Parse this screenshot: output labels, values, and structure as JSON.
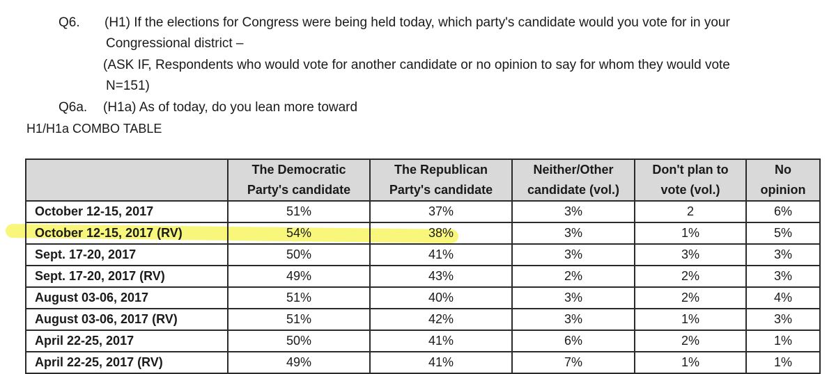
{
  "question": {
    "q6_number": "Q6.",
    "q6_line1": "(H1) If the elections for Congress were being held today, which party's candidate would you vote for in your",
    "q6_line2": "Congressional district –",
    "ask_line1": "(ASK IF, Respondents who would vote for another candidate or no opinion to say for whom they would vote",
    "ask_line2": "N=151)",
    "q6a_number": "Q6a.",
    "q6a_text": "(H1a) As of today, do you lean more toward",
    "combo_title": "H1/H1a COMBO TABLE"
  },
  "table": {
    "headers": [
      {
        "line1": "",
        "line2": ""
      },
      {
        "line1": "The Democratic",
        "line2": "Party's candidate"
      },
      {
        "line1": "The Republican",
        "line2": "Party's candidate"
      },
      {
        "line1": "Neither/Other",
        "line2": "candidate (vol.)"
      },
      {
        "line1": "Don't plan to",
        "line2": "vote (vol.)"
      },
      {
        "line1": "No",
        "line2": "opinion"
      }
    ],
    "rows": [
      [
        "October 12-15, 2017",
        "51%",
        "37%",
        "3%",
        "2",
        "6%"
      ],
      [
        "October 12-15, 2017 (RV)",
        "54%",
        "38%",
        "3%",
        "1%",
        "5%"
      ],
      [
        "Sept. 17-20, 2017",
        "50%",
        "41%",
        "3%",
        "3%",
        "3%"
      ],
      [
        "Sept. 17-20, 2017 (RV)",
        "49%",
        "43%",
        "2%",
        "2%",
        "3%"
      ],
      [
        "August 03-06, 2017",
        "51%",
        "40%",
        "3%",
        "2%",
        "4%"
      ],
      [
        "August 03-06, 2017 (RV)",
        "51%",
        "42%",
        "3%",
        "1%",
        "3%"
      ],
      [
        "April 22-25, 2017",
        "50%",
        "41%",
        "6%",
        "2%",
        "1%"
      ],
      [
        "April 22-25, 2017 (RV)",
        "49%",
        "41%",
        "7%",
        "1%",
        "1%"
      ]
    ]
  },
  "colors": {
    "highlight": "#f6f55a",
    "header_bg": "#d9d9d9"
  }
}
